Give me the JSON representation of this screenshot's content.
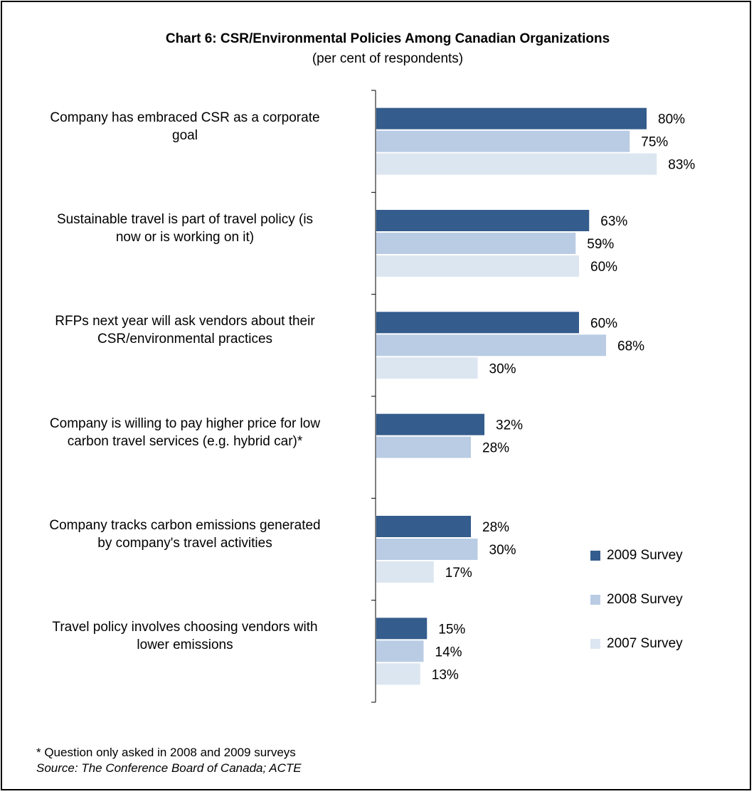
{
  "chart_data": {
    "type": "bar",
    "orientation": "horizontal",
    "title": "Chart 6: CSR/Environmental Policies Among Canadian Organizations",
    "subtitle": "(per cent of respondents)",
    "categories": [
      "Company has embraced CSR as a corporate goal",
      "Sustainable travel is part of travel policy (is now or is working on it)",
      "RFPs next year will ask vendors about their CSR/environmental practices",
      "Company is willing to pay higher price for low carbon travel services (e.g. hybrid car)*",
      "Company tracks carbon emissions generated by company's travel activities",
      "Travel policy involves choosing vendors with lower emissions"
    ],
    "series": [
      {
        "name": "2009 Survey",
        "color": "#345c8c",
        "values": [
          80,
          63,
          60,
          32,
          28,
          15
        ]
      },
      {
        "name": "2008 Survey",
        "color": "#b9cce4",
        "values": [
          75,
          59,
          68,
          28,
          30,
          14
        ]
      },
      {
        "name": "2007 Survey",
        "color": "#dce6f1",
        "values": [
          83,
          60,
          30,
          null,
          17,
          13
        ]
      }
    ],
    "value_suffix": "%",
    "legend_position": "right",
    "grid": false,
    "footnote": "* Question only asked in 2008 and 2009 surveys",
    "source": "Source:  The Conference Board of Canada; ACTE"
  }
}
